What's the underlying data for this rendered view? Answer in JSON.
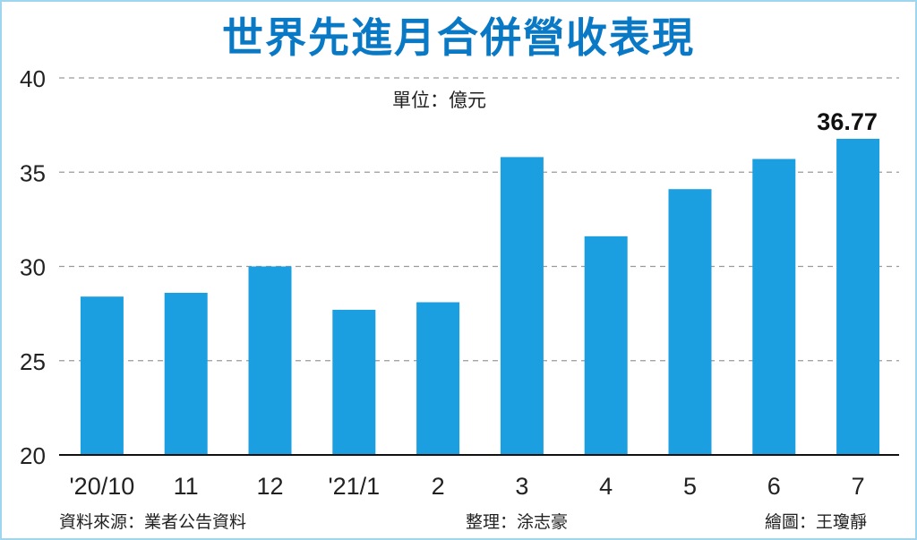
{
  "chart_data": {
    "type": "bar",
    "title": "世界先進月合併營收表現",
    "unit": "單位：億元",
    "categories": [
      "'20/10",
      "11",
      "12",
      "'21/1",
      "2",
      "3",
      "4",
      "5",
      "6",
      "7"
    ],
    "values": [
      28.4,
      28.6,
      30.0,
      27.7,
      28.1,
      35.8,
      31.6,
      34.1,
      35.7,
      36.77
    ],
    "highlight_label": {
      "index": 9,
      "text": "36.77"
    },
    "yticks": [
      20,
      25,
      30,
      35,
      40
    ],
    "ylim": [
      20,
      40
    ],
    "grid": true,
    "bar_color": "#1b9fe0"
  },
  "footer": {
    "source": "資料來源：業者公告資料",
    "editor": "整理：涂志豪",
    "artist": "繪圖：王瓊靜"
  }
}
